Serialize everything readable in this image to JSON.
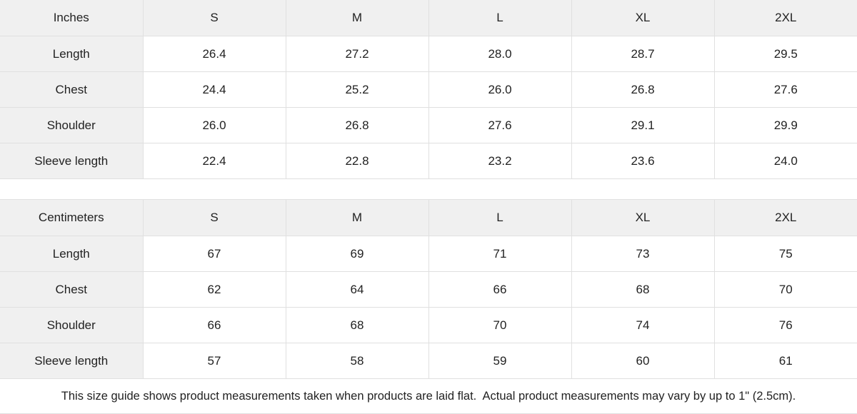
{
  "colors": {
    "header_bg": "#f0f0f0",
    "border": "#e0e0e0",
    "text": "#222222",
    "background": "#ffffff"
  },
  "tables": [
    {
      "name": "inches",
      "header": [
        "Inches",
        "S",
        "M",
        "L",
        "XL",
        "2XL"
      ],
      "rows": [
        {
          "label": "Length",
          "values": [
            "26.4",
            "27.2",
            "28.0",
            "28.7",
            "29.5"
          ]
        },
        {
          "label": "Chest",
          "values": [
            "24.4",
            "25.2",
            "26.0",
            "26.8",
            "27.6"
          ]
        },
        {
          "label": "Shoulder",
          "values": [
            "26.0",
            "26.8",
            "27.6",
            "29.1",
            "29.9"
          ]
        },
        {
          "label": "Sleeve length",
          "values": [
            "22.4",
            "22.8",
            "23.2",
            "23.6",
            "24.0"
          ]
        }
      ]
    },
    {
      "name": "centimeters",
      "header": [
        "Centimeters",
        "S",
        "M",
        "L",
        "XL",
        "2XL"
      ],
      "rows": [
        {
          "label": "Length",
          "values": [
            "67",
            "69",
            "71",
            "73",
            "75"
          ]
        },
        {
          "label": "Chest",
          "values": [
            "62",
            "64",
            "66",
            "68",
            "70"
          ]
        },
        {
          "label": "Shoulder",
          "values": [
            "66",
            "68",
            "70",
            "74",
            "76"
          ]
        },
        {
          "label": "Sleeve length",
          "values": [
            "57",
            "58",
            "59",
            "60",
            "61"
          ]
        }
      ]
    }
  ],
  "footer": {
    "note": "This size guide shows product measurements taken when products are laid flat.  Actual product measurements may vary by up to 1\" (2.5cm)."
  }
}
